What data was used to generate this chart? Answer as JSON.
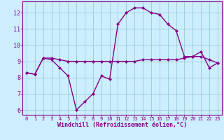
{
  "windchill": [
    8.3,
    8.2,
    9.2,
    9.1,
    8.6,
    8.1,
    6.0,
    6.5,
    7.0,
    8.1,
    7.9,
    11.3,
    12.0,
    12.3,
    12.3,
    12.0,
    11.9,
    11.3,
    10.9,
    9.3,
    9.3,
    9.6,
    8.6,
    8.9
  ],
  "temperature": [
    8.3,
    8.2,
    9.2,
    9.2,
    9.1,
    9.0,
    9.0,
    9.0,
    9.0,
    9.0,
    9.0,
    9.0,
    9.0,
    9.0,
    9.1,
    9.1,
    9.1,
    9.1,
    9.1,
    9.2,
    9.3,
    9.3,
    9.1,
    8.9
  ],
  "hours": [
    0,
    1,
    2,
    3,
    4,
    5,
    6,
    7,
    8,
    9,
    10,
    11,
    12,
    13,
    14,
    15,
    16,
    17,
    18,
    19,
    20,
    21,
    22,
    23
  ],
  "line_color": "#880088",
  "bg_color": "#cceeff",
  "grid_color": "#99cccc",
  "ylim": [
    5.7,
    12.7
  ],
  "yticks": [
    6,
    7,
    8,
    9,
    10,
    11,
    12
  ],
  "xlabel": "Windchill (Refroidissement éolien,°C)"
}
